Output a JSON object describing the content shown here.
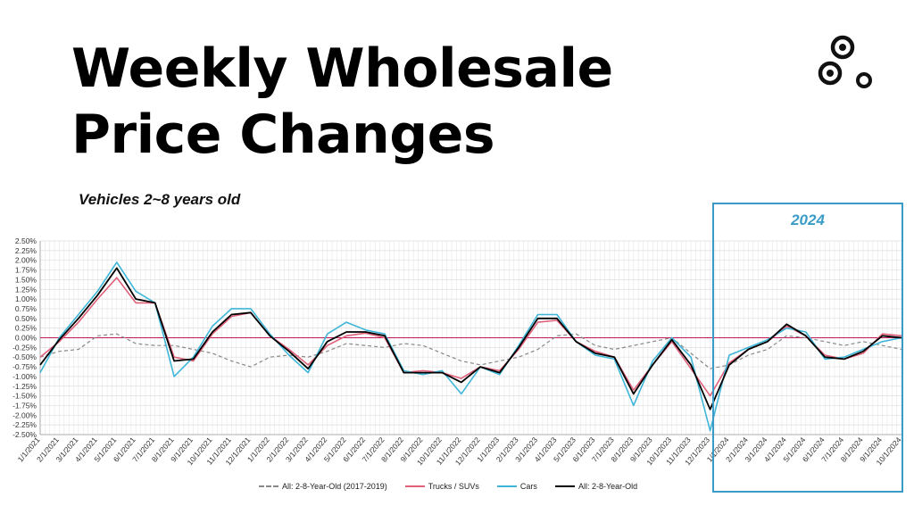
{
  "header": {
    "title_line1": "Weekly Wholesale",
    "title_line2": "Price Changes",
    "subtitle": "Vehicles 2~8 years old"
  },
  "highlight": {
    "label": "2024"
  },
  "colors": {
    "trucks": "#e0607a",
    "cars": "#3fb6d8",
    "all": "#000000",
    "baseline": "#888888",
    "zero_line": "#c2185b",
    "highlight": "#3a9cc6"
  },
  "chart_data": {
    "type": "line",
    "title": "",
    "xlabel": "",
    "ylabel": "",
    "ylim": [
      -2.5,
      2.5
    ],
    "y_ticks": [
      "2.50%",
      "2.25%",
      "2.00%",
      "1.75%",
      "1.50%",
      "1.25%",
      "1.00%",
      "0.75%",
      "0.50%",
      "0.25%",
      "0.00%",
      "-0.25%",
      "-0.50%",
      "-0.75%",
      "-1.00%",
      "-1.25%",
      "-1.50%",
      "-1.75%",
      "-2.00%",
      "-2.25%",
      "-2.50%"
    ],
    "categories": [
      "1/1/2021",
      "2/1/2021",
      "3/1/2021",
      "4/1/2021",
      "5/1/2021",
      "6/1/2021",
      "7/1/2021",
      "8/1/2021",
      "9/1/2021",
      "10/1/2021",
      "11/1/2021",
      "12/1/2021",
      "1/1/2022",
      "2/1/2022",
      "3/1/2022",
      "4/1/2022",
      "5/1/2022",
      "6/1/2022",
      "7/1/2022",
      "8/1/2022",
      "9/1/2022",
      "10/1/2022",
      "11/1/2022",
      "12/1/2022",
      "1/1/2023",
      "2/1/2023",
      "3/1/2023",
      "4/1/2023",
      "5/1/2023",
      "6/1/2023",
      "7/1/2023",
      "8/1/2023",
      "9/1/2023",
      "10/1/2023",
      "11/1/2023",
      "12/1/2023",
      "1/1/2024",
      "2/1/2024",
      "3/1/2024",
      "4/1/2024",
      "5/1/2024",
      "6/1/2024",
      "7/1/2024",
      "8/1/2024",
      "9/1/2024",
      "10/1/2024"
    ],
    "grid": true,
    "legend_position": "bottom",
    "series": [
      {
        "name": "All: 2-8-Year-Old (2017-2019)",
        "key": "baseline",
        "dashed": true,
        "values": [
          -0.5,
          -0.35,
          -0.3,
          0.05,
          0.1,
          -0.15,
          -0.2,
          -0.2,
          -0.3,
          -0.4,
          -0.6,
          -0.75,
          -0.5,
          -0.45,
          -0.5,
          -0.35,
          -0.15,
          -0.2,
          -0.25,
          -0.15,
          -0.2,
          -0.4,
          -0.6,
          -0.7,
          -0.6,
          -0.5,
          -0.3,
          0.05,
          0.1,
          -0.2,
          -0.3,
          -0.2,
          -0.1,
          0.0,
          -0.4,
          -0.8,
          -0.7,
          -0.45,
          -0.3,
          0.05,
          0.0,
          -0.1,
          -0.2,
          -0.1,
          -0.2,
          -0.3
        ]
      },
      {
        "name": "Trucks / SUVs",
        "key": "trucks",
        "dashed": false,
        "values": [
          -0.5,
          -0.1,
          0.4,
          1.0,
          1.55,
          0.9,
          0.9,
          -0.5,
          -0.6,
          0.1,
          0.55,
          0.65,
          0.05,
          -0.3,
          -0.7,
          -0.2,
          0.05,
          0.12,
          0.0,
          -0.9,
          -0.85,
          -0.9,
          -1.05,
          -0.75,
          -0.85,
          -0.3,
          0.4,
          0.45,
          -0.1,
          -0.35,
          -0.5,
          -1.35,
          -0.7,
          -0.1,
          -0.8,
          -1.5,
          -0.65,
          -0.3,
          -0.1,
          0.3,
          0.05,
          -0.45,
          -0.55,
          -0.4,
          0.1,
          0.05
        ]
      },
      {
        "name": "Cars",
        "key": "cars",
        "dashed": false,
        "values": [
          -0.9,
          0.0,
          0.6,
          1.2,
          1.95,
          1.2,
          0.9,
          -1.0,
          -0.5,
          0.3,
          0.75,
          0.75,
          0.1,
          -0.45,
          -0.9,
          0.1,
          0.4,
          0.2,
          0.1,
          -0.85,
          -0.95,
          -0.85,
          -1.45,
          -0.75,
          -0.95,
          -0.2,
          0.6,
          0.6,
          -0.1,
          -0.45,
          -0.55,
          -1.75,
          -0.6,
          0.0,
          -0.5,
          -2.4,
          -0.45,
          -0.25,
          -0.05,
          0.25,
          0.15,
          -0.55,
          -0.5,
          -0.3,
          -0.1,
          0.0
        ]
      },
      {
        "name": "All: 2-8-Year-Old",
        "key": "all",
        "dashed": false,
        "values": [
          -0.7,
          -0.05,
          0.5,
          1.1,
          1.8,
          1.0,
          0.9,
          -0.6,
          -0.55,
          0.15,
          0.6,
          0.65,
          0.05,
          -0.35,
          -0.8,
          -0.1,
          0.15,
          0.15,
          0.05,
          -0.9,
          -0.9,
          -0.9,
          -1.15,
          -0.75,
          -0.9,
          -0.25,
          0.5,
          0.5,
          -0.1,
          -0.4,
          -0.5,
          -1.45,
          -0.7,
          -0.05,
          -0.7,
          -1.85,
          -0.7,
          -0.3,
          -0.1,
          0.35,
          0.05,
          -0.5,
          -0.55,
          -0.35,
          0.05,
          0.0
        ]
      }
    ]
  }
}
